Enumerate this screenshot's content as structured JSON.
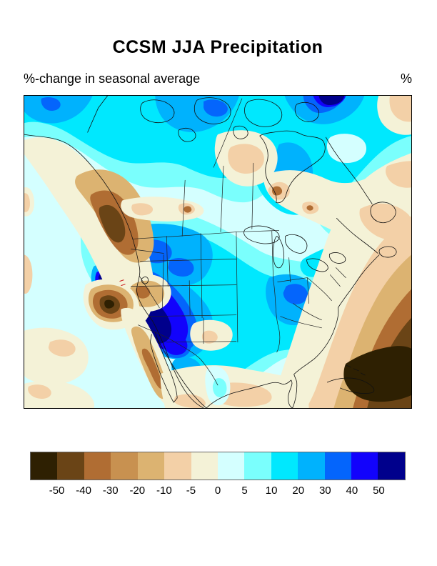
{
  "figure": {
    "title": "CCSM JJA Precipitation",
    "subtitle": "%-change in seasonal average",
    "unit_label": "%"
  },
  "chart_data": {
    "type": "filled_contour_map",
    "title": "CCSM JJA Precipitation",
    "subtitle": "%-change in seasonal average",
    "units": "%",
    "model": "CCSM",
    "season": "JJA",
    "variable": "Precipitation",
    "region": "North America",
    "legend_position": "bottom",
    "colorbar": {
      "orientation": "horizontal",
      "tick_labels": [
        "-50",
        "-40",
        "-30",
        "-20",
        "-10",
        "-5",
        "0",
        "5",
        "10",
        "20",
        "30",
        "40",
        "50"
      ],
      "bin_edges_pct": [
        -50,
        -40,
        -30,
        -20,
        -10,
        -5,
        0,
        5,
        10,
        20,
        30,
        40,
        50
      ],
      "colors": [
        "#2e2002",
        "#6a4416",
        "#b06d33",
        "#c89150",
        "#dcb371",
        "#f3d0a7",
        "#f4f2d7",
        "#d4ffff",
        "#7afffd",
        "#00e8fe",
        "#00b2fd",
        "#0465fc",
        "#1203fc",
        "#00008c"
      ]
    },
    "notable_anomalies": [
      {
        "region": "US Southwest (Nevada / Arizona / SE California)",
        "change": "> +50%"
      },
      {
        "region": "Northern Rockies and Great Plains (Montana, Dakotas)",
        "change": "+20 to +40%"
      },
      {
        "region": "Midwest / Ohio Valley",
        "change": "+10 to +30%"
      },
      {
        "region": "Canada and Hudson Bay",
        "change": "+5 to +30%"
      },
      {
        "region": "British Columbia / Pacific Northwest coast",
        "change": "-20 to -40%"
      },
      {
        "region": "Central California",
        "change": "-30 to -50%"
      },
      {
        "region": "Baja California",
        "change": "-20 to -30%"
      },
      {
        "region": "Utah",
        "change": "-10 to -20%"
      },
      {
        "region": "Quebec / Labrador / Newfoundland",
        "change": "-5 to -10%"
      },
      {
        "region": "Gulf of Mexico",
        "change": "-5 to -10%"
      },
      {
        "region": "Subtropical western Atlantic / Caribbean",
        "change": "-30 to -55%"
      }
    ]
  }
}
